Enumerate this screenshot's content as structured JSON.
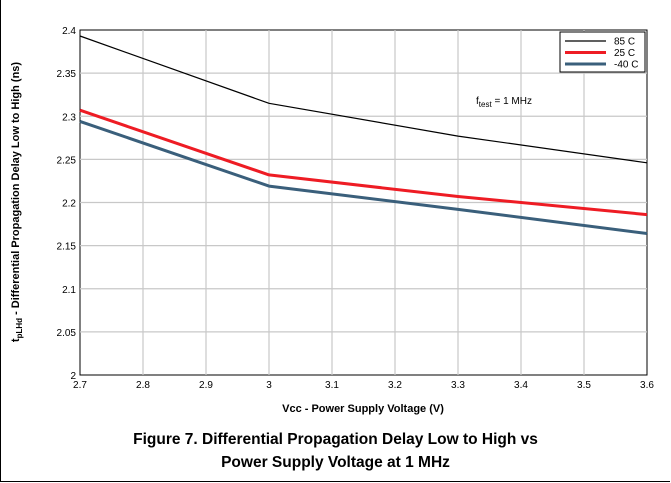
{
  "chart_data": {
    "type": "line",
    "xlabel": "Vcc - Power Supply Voltage  (V)",
    "ylabel_sub": "pLHd",
    "ylabel_rest": " - Differential Propagation Delay Low to High (ns)",
    "ylabel_main": "t",
    "xlim": [
      2.7,
      3.6
    ],
    "ylim": [
      2.0,
      2.4
    ],
    "xticks": [
      "2.7",
      "2.8",
      "2.9",
      "3",
      "3.1",
      "3.2",
      "3.3",
      "3.4",
      "3.5",
      "3.6"
    ],
    "yticks": [
      "2",
      "2.05",
      "2.1",
      "2.15",
      "2.2",
      "2.25",
      "2.3",
      "2.35",
      "2.4"
    ],
    "grid": true,
    "legend_position": "top-right",
    "series": [
      {
        "name": "85 C",
        "color": "#000000",
        "x": [
          2.7,
          3.0,
          3.3,
          3.6
        ],
        "y": [
          2.393,
          2.315,
          2.277,
          2.246
        ]
      },
      {
        "name": "25 C",
        "color": "#ee1c24",
        "x": [
          2.7,
          3.0,
          3.3,
          3.6
        ],
        "y": [
          2.307,
          2.232,
          2.207,
          2.186
        ]
      },
      {
        "name": "-40 C",
        "color": "#3a5f7b",
        "x": [
          2.7,
          3.0,
          3.3,
          3.6
        ],
        "y": [
          2.294,
          2.219,
          2.192,
          2.164
        ]
      }
    ],
    "annotation_main": "f",
    "annotation_sub": "test",
    "annotation_rest": " = 1 MHz"
  },
  "caption": {
    "line1": "Figure 7. Differential Propagation Delay Low to High vs",
    "line2": "Power Supply Voltage at 1 MHz"
  }
}
